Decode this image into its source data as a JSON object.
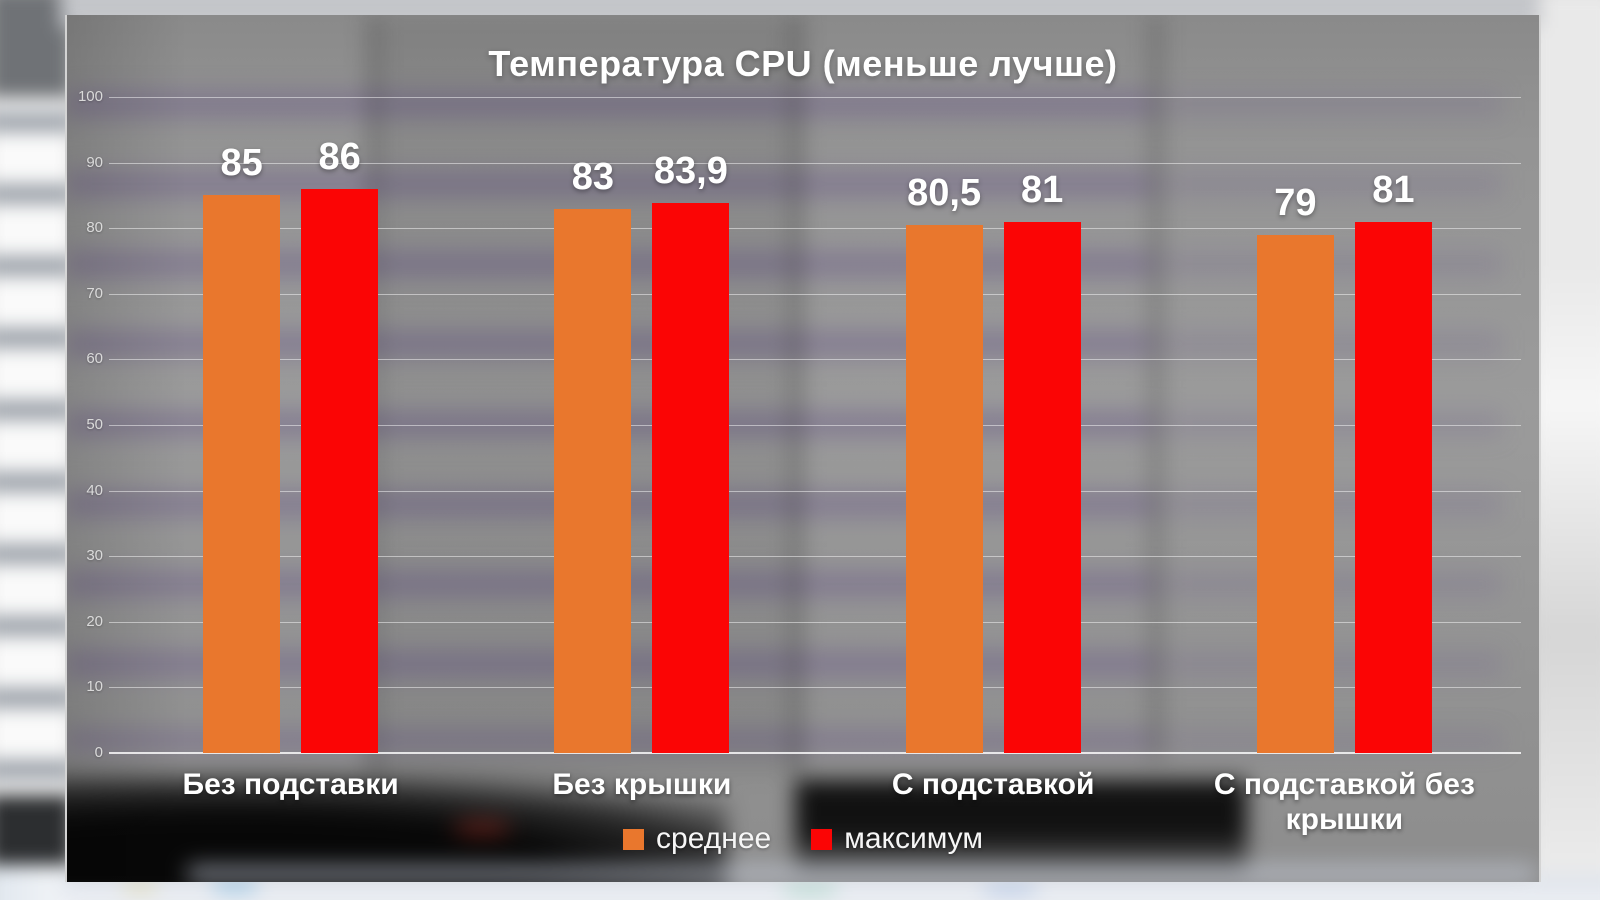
{
  "slide": {
    "title": "Температура CPU (меньше лучше)"
  },
  "colors": {
    "panel_gray": "#959595",
    "series_average": "#E9772D",
    "series_max": "#FB0505",
    "gridline": "rgba(255,255,255,0.48)",
    "tick_text": "#DADADA",
    "label_text": "#FFFFFF"
  },
  "chart_data": {
    "type": "bar",
    "title": "Температура CPU (меньше лучше)",
    "categories": [
      "Без подставки",
      "Без крышки",
      "С подставкой",
      "С подставкой без крышки"
    ],
    "series": [
      {
        "name": "среднее",
        "color": "#E9772D",
        "values": [
          85,
          83,
          80.5,
          79
        ],
        "value_labels": [
          "85",
          "83",
          "80,5",
          "79"
        ]
      },
      {
        "name": "максимум",
        "color": "#FB0505",
        "values": [
          86,
          83.9,
          81,
          81
        ],
        "value_labels": [
          "86",
          "83,9",
          "81",
          "81"
        ]
      }
    ],
    "y_axis": {
      "min": 0,
      "max": 100,
      "step": 10,
      "tick_labels": [
        "0",
        "10",
        "20",
        "30",
        "40",
        "50",
        "60",
        "70",
        "80",
        "90",
        "100"
      ]
    },
    "grid": true,
    "legend_position": "bottom"
  }
}
